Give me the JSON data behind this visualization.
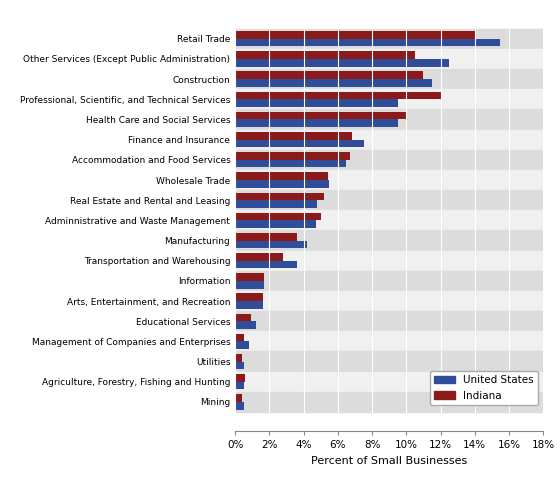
{
  "categories": [
    "Retail Trade",
    "Other Services (Except Public Administration)",
    "Construction",
    "Professional, Scientific, and Technical Services",
    "Health Care and Social Services",
    "Finance and Insurance",
    "Accommodation and Food Services",
    "Wholesale Trade",
    "Real Estate and Rental and Leasing",
    "Adminnistrative and Waste Management",
    "Manufacturing",
    "Transportation and Warehousing",
    "Information",
    "Arts, Entertainment, and Recreation",
    "Educational Services",
    "Management of Companies and Enterprises",
    "Utilities",
    "Agriculture, Forestry, Fishing and Hunting",
    "Mining"
  ],
  "us_values": [
    15.5,
    12.5,
    11.5,
    9.5,
    9.5,
    7.5,
    6.5,
    5.5,
    4.8,
    4.7,
    4.2,
    3.6,
    1.7,
    1.6,
    1.2,
    0.8,
    0.5,
    0.5,
    0.5
  ],
  "indiana_values": [
    14.0,
    10.5,
    11.0,
    12.0,
    10.0,
    6.8,
    6.7,
    5.4,
    5.2,
    5.0,
    3.6,
    2.8,
    1.7,
    1.6,
    0.9,
    0.5,
    0.4,
    0.6,
    0.4
  ],
  "us_color": "#2f4d99",
  "indiana_color": "#8b1a1a",
  "xlabel": "Percent of Small Businesses",
  "xlim": [
    0,
    18
  ],
  "xticks": [
    0,
    2,
    4,
    6,
    8,
    10,
    12,
    14,
    16,
    18
  ],
  "xticklabels": [
    "0%",
    "2%",
    "4%",
    "6%",
    "8%",
    "10%",
    "12%",
    "14%",
    "16%",
    "18%"
  ],
  "legend_labels": [
    "United States",
    "Indiana"
  ],
  "bg_dark": "#dcdcdc",
  "bg_light": "#f0f0f0"
}
